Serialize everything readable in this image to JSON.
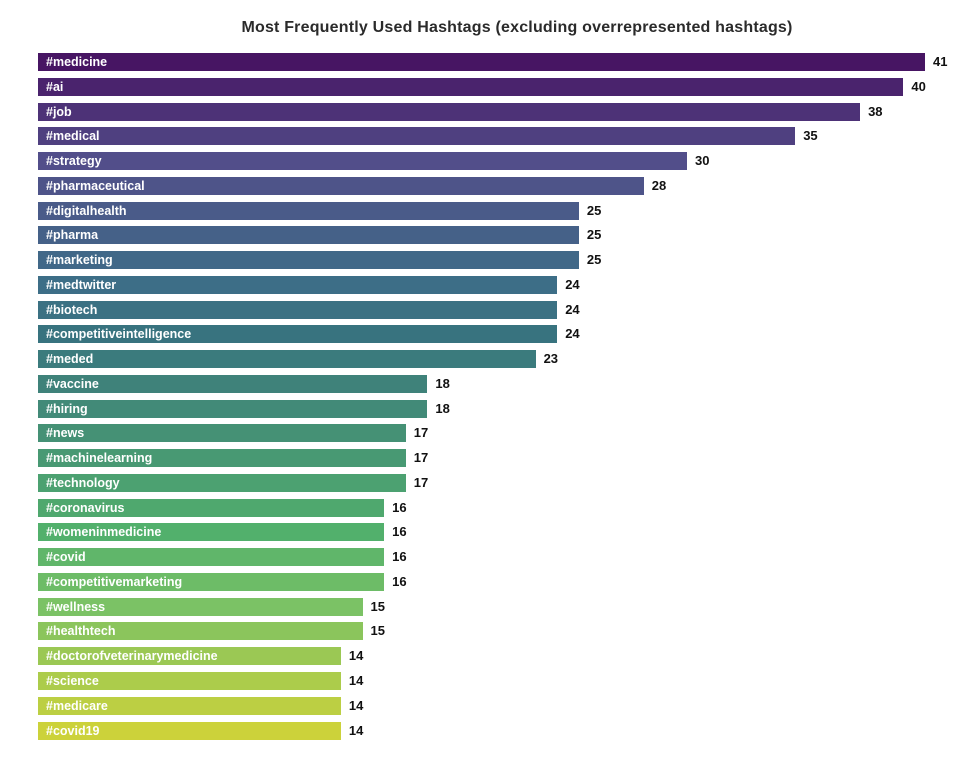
{
  "title": "Most Frequently Used Hashtags (excluding overrepresented hashtags)",
  "chart_data": {
    "type": "bar",
    "orientation": "horizontal",
    "title": "Most Frequently Used Hashtags (excluding overrepresented hashtags)",
    "xlabel": "",
    "ylabel": "",
    "xlim": [
      0,
      43
    ],
    "grid": false,
    "legend": "none",
    "value_labels_shown": true,
    "category_labels_inside_bars": true,
    "label_text_color": "#ffffff",
    "value_text_color": "#111111",
    "title_color": "#2b2b2b",
    "background_color": "#ffffff",
    "categories": [
      "#medicine",
      "#ai",
      "#job",
      "#medical",
      "#strategy",
      "#pharmaceutical",
      "#digitalhealth",
      "#pharma",
      "#marketing",
      "#medtwitter",
      "#biotech",
      "#competitiveintelligence",
      "#meded",
      "#vaccine",
      "#hiring",
      "#news",
      "#machinelearning",
      "#technology",
      "#coronavirus",
      "#womeninmedicine",
      "#covid",
      "#competitivemarketing",
      "#wellness",
      "#healthtech",
      "#doctorofveterinarymedicine",
      "#science",
      "#medicare",
      "#covid19"
    ],
    "values": [
      41,
      40,
      38,
      35,
      30,
      28,
      25,
      25,
      25,
      24,
      24,
      24,
      23,
      18,
      18,
      17,
      17,
      17,
      16,
      16,
      16,
      16,
      15,
      15,
      14,
      14,
      14,
      14
    ],
    "colors": [
      "#471563",
      "#4a236d",
      "#4d3277",
      "#4f4080",
      "#524e8a",
      "#4e5489",
      "#4a5b89",
      "#456188",
      "#416888",
      "#3d6e87",
      "#3b7183",
      "#38737f",
      "#3b7b7d",
      "#3f827a",
      "#428a78",
      "#459175",
      "#489973",
      "#4ca171",
      "#4fa86e",
      "#52b06c",
      "#60b66a",
      "#6dbc67",
      "#7bc265",
      "#8bc55c",
      "#9bc854",
      "#accc4b",
      "#bccf43",
      "#ccd23a"
    ]
  }
}
